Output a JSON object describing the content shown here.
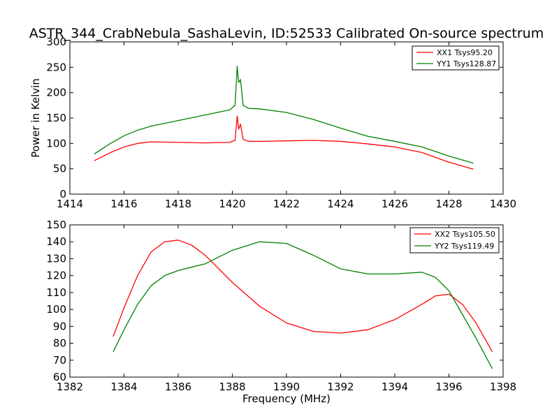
{
  "chart_data": [
    {
      "type": "line",
      "title": "ASTR_344_CrabNebula_SashaLevin, ID:52533 Calibrated On-source spectrum",
      "xlabel": "",
      "ylabel": "Power in Kelvin",
      "xlim": [
        1414,
        1430
      ],
      "ylim": [
        0,
        300
      ],
      "xticks": [
        "1414",
        "1416",
        "1418",
        "1420",
        "1422",
        "1424",
        "1426",
        "1428",
        "1430"
      ],
      "yticks": [
        "0",
        "50",
        "100",
        "150",
        "200",
        "250",
        "300"
      ],
      "legend_position": "top-right",
      "grid": false,
      "series": [
        {
          "name": "XX1 Tsys95.20",
          "color": "#ff0000",
          "x": [
            1414.9,
            1415.5,
            1416.0,
            1416.5,
            1417.0,
            1418.0,
            1419.0,
            1419.9,
            1420.1,
            1420.18,
            1420.23,
            1420.3,
            1420.4,
            1420.6,
            1421.0,
            1422.0,
            1423.0,
            1424.0,
            1425.0,
            1426.0,
            1427.0,
            1428.0,
            1428.9
          ],
          "y": [
            66,
            82,
            93,
            100,
            103,
            102,
            101,
            102,
            106,
            154,
            128,
            138,
            108,
            104,
            104,
            105,
            106,
            104,
            99,
            93,
            82,
            63,
            49
          ]
        },
        {
          "name": "YY1 Tsys128.87",
          "color": "#008000",
          "x": [
            1414.9,
            1415.5,
            1416.0,
            1416.5,
            1417.0,
            1418.0,
            1419.0,
            1419.9,
            1420.1,
            1420.18,
            1420.23,
            1420.3,
            1420.4,
            1420.6,
            1421.0,
            1422.0,
            1423.0,
            1424.0,
            1425.0,
            1426.0,
            1427.0,
            1428.0,
            1428.9
          ],
          "y": [
            79,
            100,
            115,
            126,
            134,
            145,
            156,
            166,
            175,
            252,
            220,
            226,
            175,
            169,
            168,
            161,
            147,
            130,
            114,
            104,
            93,
            75,
            61
          ]
        }
      ]
    },
    {
      "type": "line",
      "title": "",
      "xlabel": "Frequency (MHz)",
      "ylabel": "",
      "xlim": [
        1382,
        1398
      ],
      "ylim": [
        60,
        150
      ],
      "xticks": [
        "1382",
        "1384",
        "1386",
        "1388",
        "1390",
        "1392",
        "1394",
        "1396",
        "1398"
      ],
      "yticks": [
        "60",
        "70",
        "80",
        "90",
        "100",
        "110",
        "120",
        "130",
        "140",
        "150"
      ],
      "legend_position": "top-right",
      "grid": false,
      "series": [
        {
          "name": "XX2 Tsys105.50",
          "color": "#ff0000",
          "x": [
            1383.6,
            1384.0,
            1384.5,
            1385.0,
            1385.5,
            1386.0,
            1386.5,
            1387.0,
            1388.0,
            1389.0,
            1390.0,
            1391.0,
            1392.0,
            1393.0,
            1394.0,
            1395.0,
            1395.5,
            1396.0,
            1396.5,
            1397.0,
            1397.6
          ],
          "y": [
            84,
            101,
            120,
            134,
            140,
            141,
            138,
            132,
            116,
            102,
            92,
            87,
            86,
            88,
            94,
            103,
            108,
            109,
            103,
            92,
            75
          ]
        },
        {
          "name": "YY2 Tsys119.49",
          "color": "#008000",
          "x": [
            1383.6,
            1384.0,
            1384.5,
            1385.0,
            1385.5,
            1386.0,
            1386.5,
            1387.0,
            1388.0,
            1389.0,
            1390.0,
            1391.0,
            1392.0,
            1393.0,
            1394.0,
            1395.0,
            1395.5,
            1396.0,
            1396.5,
            1397.0,
            1397.6
          ],
          "y": [
            75,
            88,
            103,
            114,
            120,
            123,
            125,
            127,
            135,
            140,
            139,
            132,
            124,
            121,
            121,
            122,
            119,
            111,
            97,
            83,
            65
          ]
        }
      ]
    }
  ]
}
